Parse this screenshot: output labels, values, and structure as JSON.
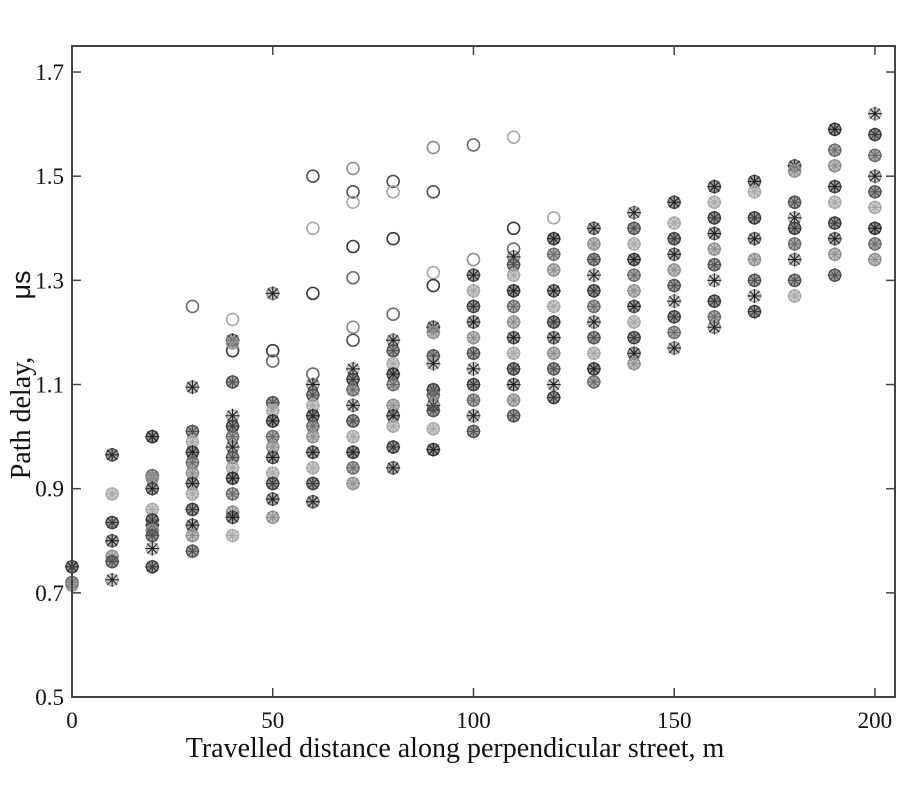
{
  "chart_data": {
    "type": "scatter",
    "title": "",
    "xlabel": "Travelled distance along perpendicular street, m",
    "ylabel": "Path delay,",
    "ylabel_unit": "μs",
    "xlim": [
      0,
      205
    ],
    "ylim": [
      0.5,
      1.75
    ],
    "xticks": [
      "0",
      "50",
      "100",
      "150",
      "200"
    ],
    "yticks": [
      "0.5",
      "0.7",
      "0.9",
      "1.1",
      "1.3",
      "1.5",
      "1.7"
    ],
    "grid": false,
    "legend": "none",
    "marker_colors": [
      "#3a3a3a",
      "#6a6a6a",
      "#8f8f8f",
      "#505050",
      "#a8a8a8"
    ],
    "columns": [
      {
        "x": 0,
        "y": [
          0.75,
          0.72,
          0.715
        ],
        "circles": []
      },
      {
        "x": 10,
        "y": [
          0.965,
          0.89,
          0.835,
          0.8,
          0.77,
          0.76,
          0.725
        ],
        "circles": []
      },
      {
        "x": 20,
        "y": [
          1.0,
          0.925,
          0.92,
          0.9,
          0.86,
          0.84,
          0.83,
          0.82,
          0.81,
          0.785,
          0.75
        ],
        "circles": []
      },
      {
        "x": 30,
        "y": [
          1.095,
          1.01,
          0.99,
          0.97,
          0.95,
          0.93,
          0.91,
          0.89,
          0.86,
          0.83,
          0.81,
          0.78
        ],
        "circles": [
          1.25
        ]
      },
      {
        "x": 40,
        "y": [
          1.185,
          1.18,
          1.105,
          1.04,
          1.02,
          1.0,
          0.98,
          0.96,
          0.94,
          0.92,
          0.89,
          0.855,
          0.845,
          0.81
        ],
        "circles": [
          1.225,
          1.165
        ]
      },
      {
        "x": 50,
        "y": [
          1.275,
          1.065,
          1.05,
          1.03,
          1.0,
          0.98,
          0.96,
          0.93,
          0.91,
          0.88,
          0.845
        ],
        "circles": [
          1.165,
          1.145
        ]
      },
      {
        "x": 60,
        "y": [
          1.1,
          1.08,
          1.06,
          1.04,
          1.02,
          1.0,
          0.97,
          0.94,
          0.91,
          0.875
        ],
        "circles": [
          1.5,
          1.4,
          1.275,
          1.12
        ]
      },
      {
        "x": 70,
        "y": [
          1.13,
          1.11,
          1.09,
          1.06,
          1.03,
          1.0,
          0.97,
          0.94,
          0.91
        ],
        "circles": [
          1.515,
          1.47,
          1.45,
          1.365,
          1.305,
          1.21,
          1.185
        ]
      },
      {
        "x": 80,
        "y": [
          1.185,
          1.165,
          1.14,
          1.12,
          1.1,
          1.06,
          1.04,
          1.02,
          0.98,
          0.94
        ],
        "circles": [
          1.49,
          1.47,
          1.38,
          1.235
        ]
      },
      {
        "x": 90,
        "y": [
          1.21,
          1.2,
          1.155,
          1.14,
          1.09,
          1.08,
          1.06,
          1.05,
          1.015,
          0.975
        ],
        "circles": [
          1.555,
          1.47,
          1.315,
          1.29
        ]
      },
      {
        "x": 100,
        "y": [
          1.31,
          1.28,
          1.25,
          1.22,
          1.19,
          1.16,
          1.13,
          1.1,
          1.07,
          1.04,
          1.01
        ],
        "circles": [
          1.56,
          1.34
        ]
      },
      {
        "x": 110,
        "y": [
          1.345,
          1.33,
          1.31,
          1.28,
          1.25,
          1.22,
          1.19,
          1.16,
          1.13,
          1.1,
          1.07,
          1.04
        ],
        "circles": [
          1.575,
          1.4,
          1.36
        ]
      },
      {
        "x": 120,
        "y": [
          1.38,
          1.35,
          1.32,
          1.28,
          1.25,
          1.22,
          1.19,
          1.16,
          1.13,
          1.1,
          1.075
        ],
        "circles": [
          1.42
        ]
      },
      {
        "x": 130,
        "y": [
          1.4,
          1.37,
          1.34,
          1.31,
          1.28,
          1.25,
          1.22,
          1.19,
          1.16,
          1.13,
          1.105
        ],
        "circles": []
      },
      {
        "x": 140,
        "y": [
          1.43,
          1.4,
          1.37,
          1.34,
          1.31,
          1.28,
          1.25,
          1.22,
          1.19,
          1.16,
          1.14
        ],
        "circles": []
      },
      {
        "x": 150,
        "y": [
          1.45,
          1.41,
          1.38,
          1.35,
          1.32,
          1.29,
          1.26,
          1.23,
          1.2,
          1.17
        ],
        "circles": []
      },
      {
        "x": 160,
        "y": [
          1.48,
          1.45,
          1.42,
          1.39,
          1.36,
          1.33,
          1.3,
          1.26,
          1.23,
          1.21
        ],
        "circles": []
      },
      {
        "x": 170,
        "y": [
          1.49,
          1.47,
          1.42,
          1.38,
          1.34,
          1.3,
          1.27,
          1.24
        ],
        "circles": []
      },
      {
        "x": 180,
        "y": [
          1.52,
          1.51,
          1.45,
          1.42,
          1.4,
          1.37,
          1.34,
          1.3,
          1.27
        ],
        "circles": []
      },
      {
        "x": 190,
        "y": [
          1.59,
          1.55,
          1.52,
          1.48,
          1.45,
          1.41,
          1.38,
          1.35,
          1.31
        ],
        "circles": []
      },
      {
        "x": 200,
        "y": [
          1.62,
          1.58,
          1.54,
          1.5,
          1.47,
          1.44,
          1.4,
          1.37,
          1.34
        ],
        "circles": []
      }
    ]
  }
}
